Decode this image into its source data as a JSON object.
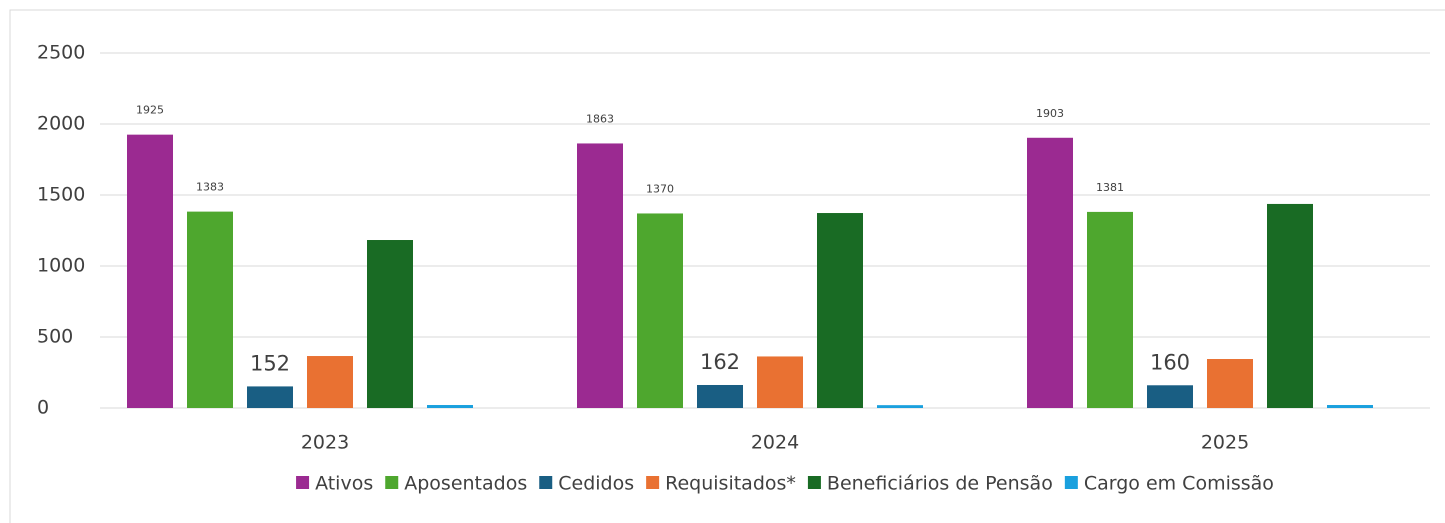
{
  "chart_data": {
    "type": "bar",
    "categories": [
      "2023",
      "2024",
      "2025"
    ],
    "series": [
      {
        "name": "Ativos",
        "color": "#9b2a91",
        "values": [
          1925,
          1863,
          1903
        ],
        "show_labels": true
      },
      {
        "name": "Aposentados",
        "color": "#4ea72e",
        "values": [
          1383,
          1370,
          1381
        ],
        "show_labels": true
      },
      {
        "name": "Cedidos",
        "color": "#195e83",
        "values": [
          152,
          162,
          160
        ],
        "show_labels": true
      },
      {
        "name": "Requisitados*",
        "color": "#e97132",
        "values": [
          366,
          363,
          345
        ],
        "show_labels": false
      },
      {
        "name": "Beneficiários de Pensão",
        "color": "#196b24",
        "values": [
          1183,
          1373,
          1437
        ],
        "show_labels": false
      },
      {
        "name": "Cargo em Comissão",
        "color": "#1aa0de",
        "values": [
          21,
          20,
          21
        ],
        "show_labels": false
      }
    ],
    "ylim": [
      0,
      2500
    ],
    "yticks": [
      0,
      500,
      1000,
      1500,
      2000,
      2500
    ],
    "grid": true,
    "legend": "bottom"
  }
}
